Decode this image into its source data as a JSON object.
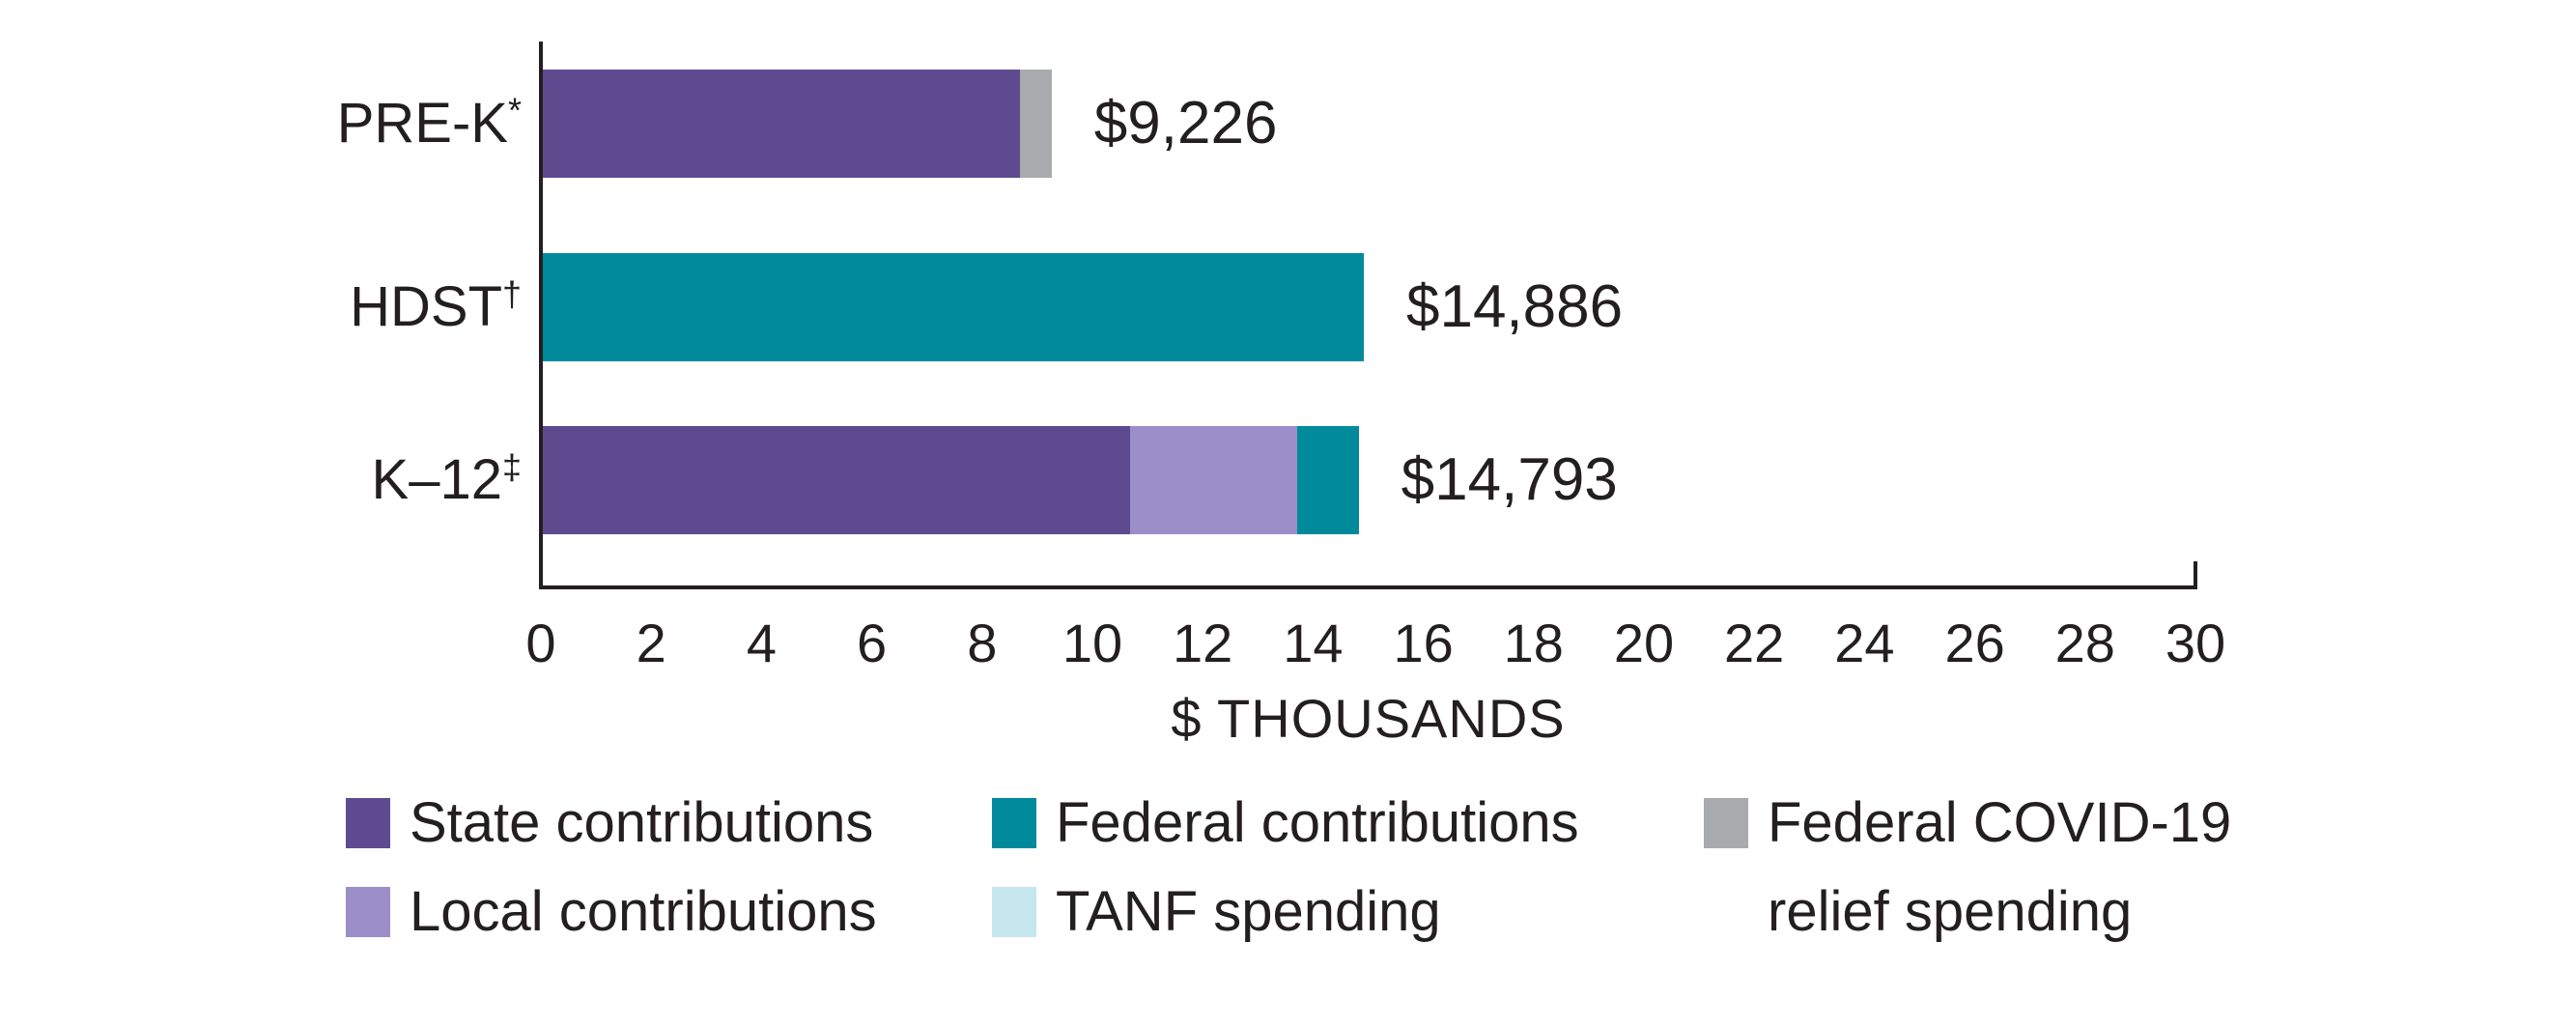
{
  "chart_data": {
    "type": "bar",
    "orientation": "horizontal",
    "title": "",
    "xlabel": "$ THOUSANDS",
    "ylabel": "",
    "xlim": [
      0,
      30
    ],
    "xticks": [
      0,
      2,
      4,
      6,
      8,
      10,
      12,
      14,
      16,
      18,
      20,
      22,
      24,
      26,
      28,
      30
    ],
    "grid": false,
    "units": "$ thousands per child",
    "series": [
      {
        "key": "state",
        "name": "State contributions",
        "color": "#5e4a8f"
      },
      {
        "key": "local",
        "name": "Local contributions",
        "color": "#9c8ec9"
      },
      {
        "key": "federal",
        "name": "Federal contributions",
        "color": "#008a9b"
      },
      {
        "key": "tanf",
        "name": "TANF spending",
        "color": "#c6e6ee"
      },
      {
        "key": "covid",
        "name": "Federal COVID-19 relief spending",
        "color": "#a8aaad"
      }
    ],
    "categories": [
      {
        "label": "PRE-K",
        "sup": "*",
        "total": 9.226,
        "total_label": "$9,226",
        "segments": [
          {
            "series": "state",
            "value": 8.648
          },
          {
            "series": "covid",
            "value": 0.578
          }
        ]
      },
      {
        "label": "HDST",
        "sup": "†",
        "total": 14.886,
        "total_label": "$14,886",
        "segments": [
          {
            "series": "federal",
            "value": 14.886
          }
        ]
      },
      {
        "label": "K–12",
        "sup": "‡",
        "total": 14.793,
        "total_label": "$14,793",
        "segments": [
          {
            "series": "state",
            "value": 10.65
          },
          {
            "series": "local",
            "value": 3.02
          },
          {
            "series": "federal",
            "value": 1.123
          }
        ]
      }
    ]
  },
  "legend": {
    "columns": [
      {
        "items": [
          {
            "series": "state",
            "label_lines": [
              "State contributions"
            ]
          },
          {
            "series": "local",
            "label_lines": [
              "Local contributions"
            ]
          }
        ]
      },
      {
        "items": [
          {
            "series": "federal",
            "label_lines": [
              "Federal contributions"
            ]
          },
          {
            "series": "tanf",
            "label_lines": [
              "TANF spending"
            ]
          }
        ]
      },
      {
        "items": [
          {
            "series": "covid",
            "label_lines": [
              "Federal COVID-19",
              "relief spending"
            ]
          }
        ]
      }
    ]
  },
  "colors": {
    "text": "#231f20",
    "axis": "#231f20",
    "background": "#ffffff"
  }
}
